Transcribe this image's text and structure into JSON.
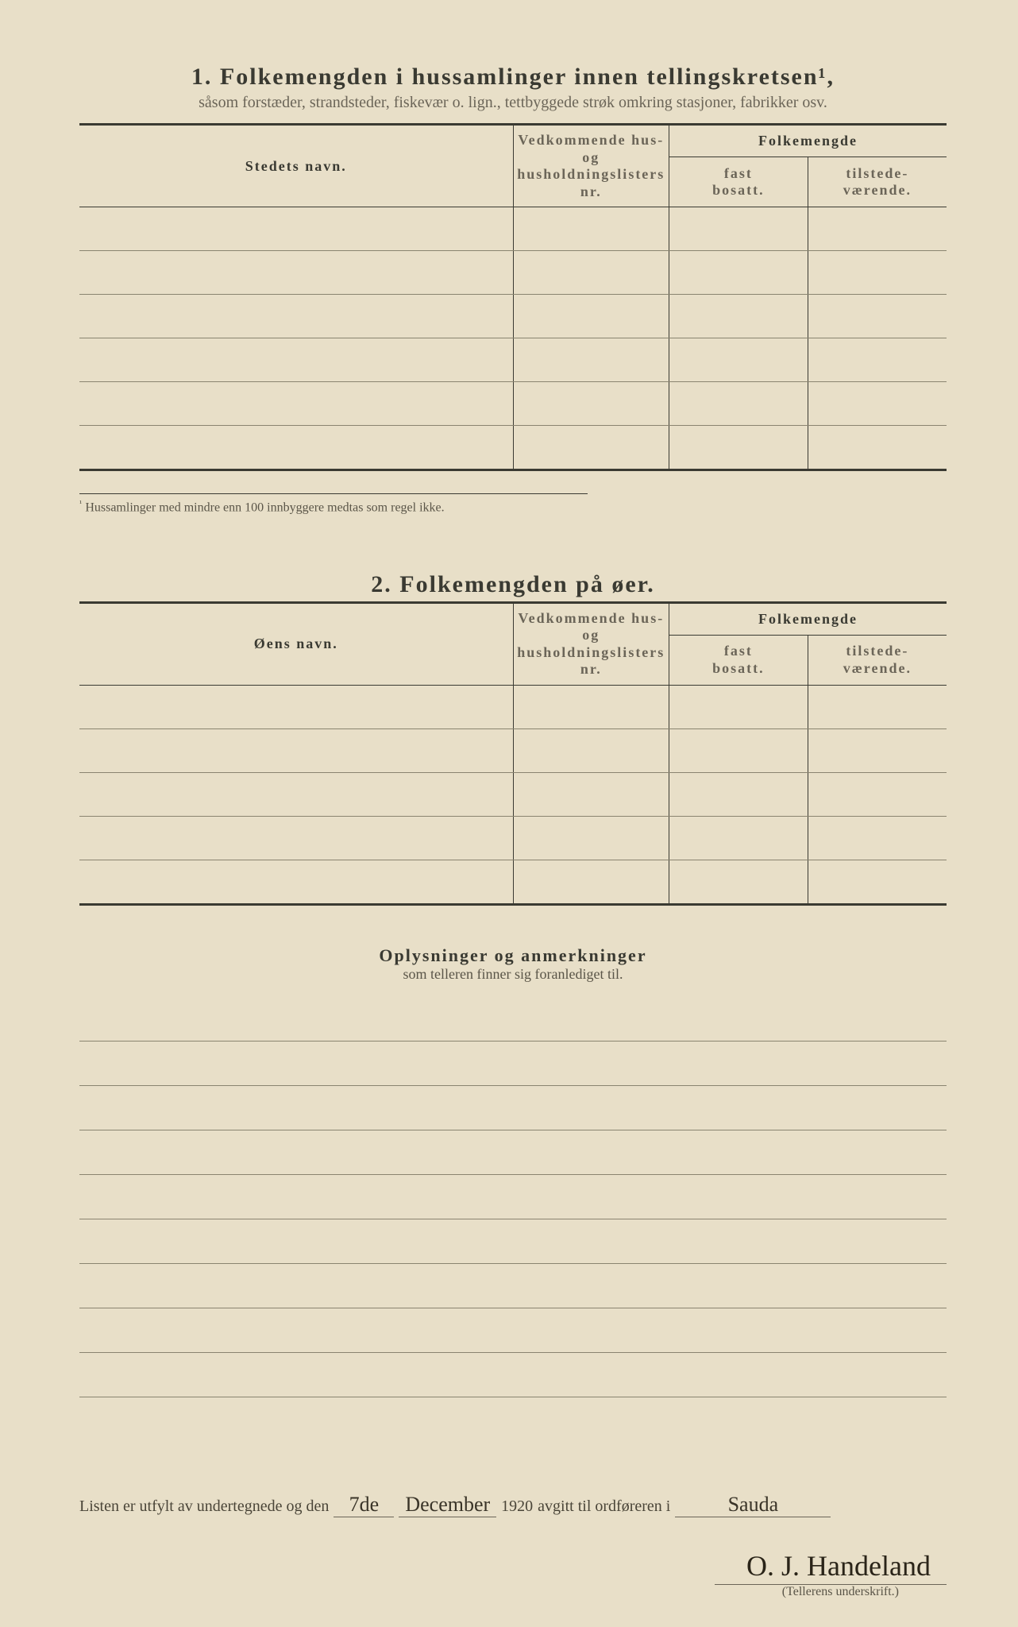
{
  "section1": {
    "number": "1.",
    "title": "Folkemengden i hussamlinger innen tellingskretsen¹,",
    "subtitle": "såsom forstæder, strandsteder, fiskevær o. lign., tettbyggede strøk omkring stasjoner, fabrikker osv.",
    "col_name": "Stedets navn.",
    "col_nr_line1": "Vedkommende hus- og",
    "col_nr_line2": "husholdningslisters",
    "col_nr_line3": "nr.",
    "col_folkemengde": "Folkemengde",
    "col_fast_line1": "fast",
    "col_fast_line2": "bosatt.",
    "col_til_line1": "tilstede-",
    "col_til_line2": "værende.",
    "row_count": 6
  },
  "footnote": {
    "marker": "¹",
    "text": "Hussamlinger med mindre enn 100 innbyggere medtas som regel ikke."
  },
  "section2": {
    "number": "2.",
    "title": "Folkemengden på øer.",
    "col_name": "Øens navn.",
    "row_count": 5
  },
  "section3": {
    "title": "Oplysninger og anmerkninger",
    "subtitle": "som telleren finner sig foranlediget til.",
    "line_count": 9
  },
  "signature": {
    "prefix": "Listen er utfylt av undertegnede og den",
    "day": "7de",
    "month": "December",
    "year": "1920",
    "middle": "avgitt til ordføreren i",
    "place": "Sauda",
    "name": "O. J. Handeland",
    "label": "(Tellerens underskrift.)"
  }
}
